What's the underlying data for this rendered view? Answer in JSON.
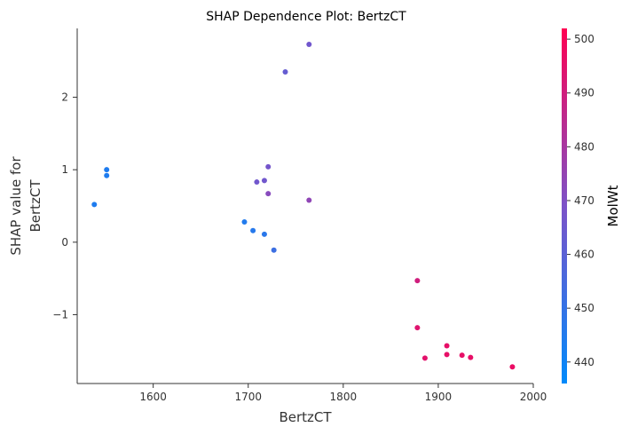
{
  "chart_data": {
    "type": "scatter",
    "title": "SHAP Dependence Plot: BertzCT",
    "xlabel": "BertzCT",
    "ylabel_lines": [
      "SHAP value for",
      "BertzCT"
    ],
    "xlim": [
      1520,
      2000
    ],
    "ylim": [
      -1.95,
      2.95
    ],
    "xticks": [
      1600,
      1700,
      1800,
      1900,
      2000
    ],
    "xtick_labels": [
      "1600",
      "1700",
      "1800",
      "1900",
      "2000"
    ],
    "yticks": [
      -1,
      0,
      1,
      2
    ],
    "ytick_labels": [
      "−1",
      "0",
      "1",
      "2"
    ],
    "grid": false,
    "colorbar": {
      "label": "MolWt",
      "range": [
        436,
        502
      ],
      "ticks": [
        440,
        450,
        460,
        470,
        480,
        490,
        500
      ],
      "tick_labels": [
        "440",
        "450",
        "460",
        "470",
        "480",
        "490",
        "500"
      ],
      "colors": [
        "#008afb",
        "#7c52c8",
        "#ff0052"
      ]
    },
    "points": [
      {
        "x": 1538,
        "y": 0.52,
        "c": 444
      },
      {
        "x": 1551,
        "y": 1.0,
        "c": 444
      },
      {
        "x": 1551,
        "y": 0.92,
        "c": 444
      },
      {
        "x": 1696,
        "y": 0.28,
        "c": 445
      },
      {
        "x": 1705,
        "y": 0.16,
        "c": 446
      },
      {
        "x": 1717,
        "y": 0.11,
        "c": 447
      },
      {
        "x": 1727,
        "y": -0.11,
        "c": 452
      },
      {
        "x": 1709,
        "y": 0.83,
        "c": 466
      },
      {
        "x": 1717,
        "y": 0.85,
        "c": 466
      },
      {
        "x": 1721,
        "y": 1.04,
        "c": 467
      },
      {
        "x": 1721,
        "y": 0.67,
        "c": 472
      },
      {
        "x": 1764,
        "y": 0.58,
        "c": 474
      },
      {
        "x": 1739,
        "y": 2.35,
        "c": 463
      },
      {
        "x": 1764,
        "y": 2.73,
        "c": 466
      },
      {
        "x": 1878,
        "y": -0.53,
        "c": 490
      },
      {
        "x": 1878,
        "y": -1.18,
        "c": 494
      },
      {
        "x": 1886,
        "y": -1.6,
        "c": 495
      },
      {
        "x": 1909,
        "y": -1.43,
        "c": 496
      },
      {
        "x": 1909,
        "y": -1.55,
        "c": 496
      },
      {
        "x": 1925,
        "y": -1.56,
        "c": 496
      },
      {
        "x": 1934,
        "y": -1.59,
        "c": 496
      },
      {
        "x": 1978,
        "y": -1.72,
        "c": 497
      }
    ]
  }
}
